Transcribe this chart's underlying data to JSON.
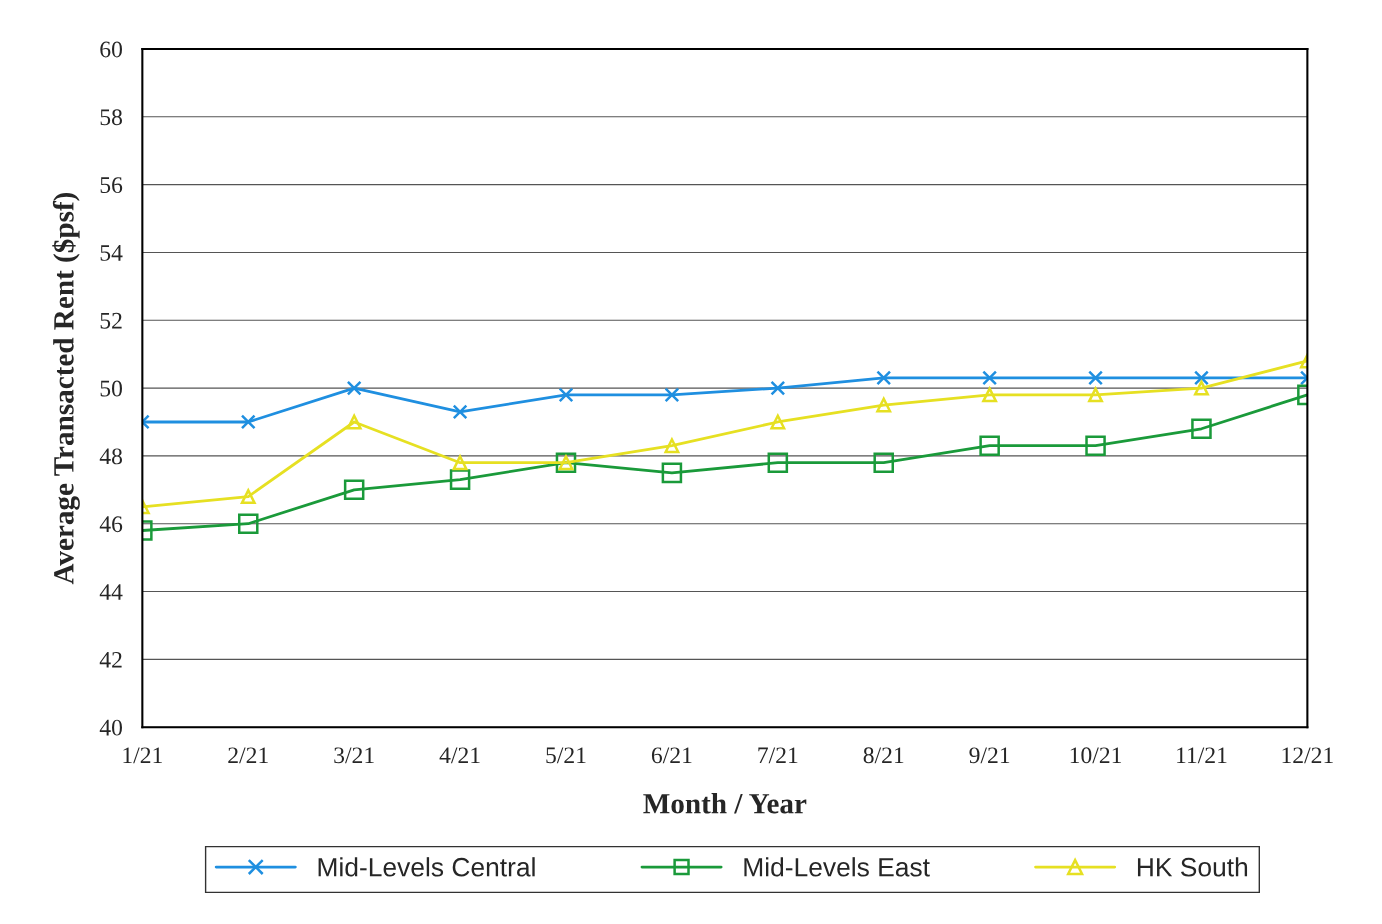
{
  "chart_data": {
    "type": "line",
    "xlabel": "Month / Year",
    "ylabel": "Average Transacted Rent ($psf)",
    "categories": [
      "1/21",
      "2/21",
      "3/21",
      "4/21",
      "5/21",
      "6/21",
      "7/21",
      "8/21",
      "9/21",
      "10/21",
      "11/21",
      "12/21"
    ],
    "series": [
      {
        "name": "Mid-Levels Central",
        "color": "#1f8fe0",
        "marker": "cross",
        "values": [
          49,
          49,
          50,
          49.3,
          49.8,
          49.8,
          50,
          50.3,
          50.3,
          50.3,
          50.3,
          50.3
        ]
      },
      {
        "name": "Mid-Levels East",
        "color": "#1a9a3a",
        "marker": "square",
        "values": [
          45.8,
          46,
          47,
          47.3,
          47.8,
          47.5,
          47.8,
          47.8,
          48.3,
          48.3,
          48.8,
          49.8
        ]
      },
      {
        "name": "HK South",
        "color": "#e6e022",
        "marker": "triangle",
        "values": [
          46.5,
          46.8,
          49,
          47.8,
          47.8,
          48.3,
          49,
          49.5,
          49.8,
          49.8,
          50,
          50.8
        ]
      }
    ],
    "ylim": [
      40,
      60
    ],
    "yticks": [
      40,
      42,
      44,
      46,
      48,
      50,
      52,
      54,
      56,
      58,
      60
    ],
    "grid": "y",
    "legend": "bottom",
    "line_style": "solid"
  }
}
